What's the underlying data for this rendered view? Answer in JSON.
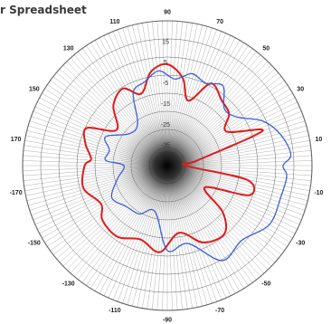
{
  "page": {
    "title": "r Spreadsheet"
  },
  "chart_data": {
    "type": "polar",
    "angle_unit": "degrees",
    "angle_zero": "right",
    "angle_direction": "counterclockwise",
    "angle_tick_labels": [
      {
        "angle": 90,
        "label": "90"
      },
      {
        "angle": 70,
        "label": "70"
      },
      {
        "angle": 50,
        "label": "50"
      },
      {
        "angle": 30,
        "label": "30"
      },
      {
        "angle": 10,
        "label": "10"
      },
      {
        "angle": -10,
        "label": "-10"
      },
      {
        "angle": -30,
        "label": "-30"
      },
      {
        "angle": -50,
        "label": "-50"
      },
      {
        "angle": -70,
        "label": "-70"
      },
      {
        "angle": -90,
        "label": "-90"
      },
      {
        "angle": -110,
        "label": "-110"
      },
      {
        "angle": -130,
        "label": "-130"
      },
      {
        "angle": -150,
        "label": "-150"
      },
      {
        "angle": -170,
        "label": "-170"
      },
      {
        "angle": 170,
        "label": "170"
      },
      {
        "angle": 150,
        "label": "150"
      },
      {
        "angle": 130,
        "label": "130"
      },
      {
        "angle": 110,
        "label": "110"
      }
    ],
    "radial_tick_labels": [
      "15",
      "5",
      "-5",
      "-15",
      "-25",
      "-35"
    ],
    "radial_range": [
      -45,
      25
    ],
    "grid": true,
    "colors": {
      "series_red": "#e01a1a",
      "series_blue": "#3d5fd6",
      "grid": "#333333"
    },
    "series": [
      {
        "color": "#e01a1a",
        "angles": [
          -180,
          -165,
          -150,
          -140,
          -125,
          -110,
          -95,
          -80,
          -65,
          -50,
          -40,
          -30,
          -20,
          -10,
          0,
          10,
          20,
          30,
          40,
          50,
          62,
          72,
          80,
          90,
          100,
          110,
          120,
          132,
          145,
          155,
          165,
          175
        ],
        "values": [
          -5,
          -3,
          -8,
          -4,
          -3,
          -7,
          -3,
          -12,
          -4,
          -2,
          -10,
          -24,
          -3,
          -6,
          -36,
          -30,
          4,
          -12,
          -6,
          -4,
          0,
          -12,
          -2,
          4,
          1,
          -8,
          -2,
          -6,
          -15,
          -2,
          -4,
          -8
        ]
      },
      {
        "color": "#3d5fd6",
        "angles": [
          -180,
          -165,
          -150,
          -135,
          -120,
          -105,
          -90,
          -75,
          -60,
          -45,
          -30,
          -15,
          -5,
          0,
          5,
          15,
          25,
          35,
          45,
          55,
          65,
          75,
          85,
          95,
          105,
          115,
          125,
          140,
          155,
          165,
          175
        ],
        "values": [
          -24,
          -20,
          -14,
          -17,
          -18,
          -22,
          -4,
          -6,
          8,
          6,
          12,
          12,
          13,
          11,
          15,
          12,
          6,
          -4,
          -6,
          2,
          -1,
          1,
          -3,
          1,
          -3,
          -6,
          -20,
          -21,
          -12,
          -16,
          -15
        ]
      }
    ]
  }
}
